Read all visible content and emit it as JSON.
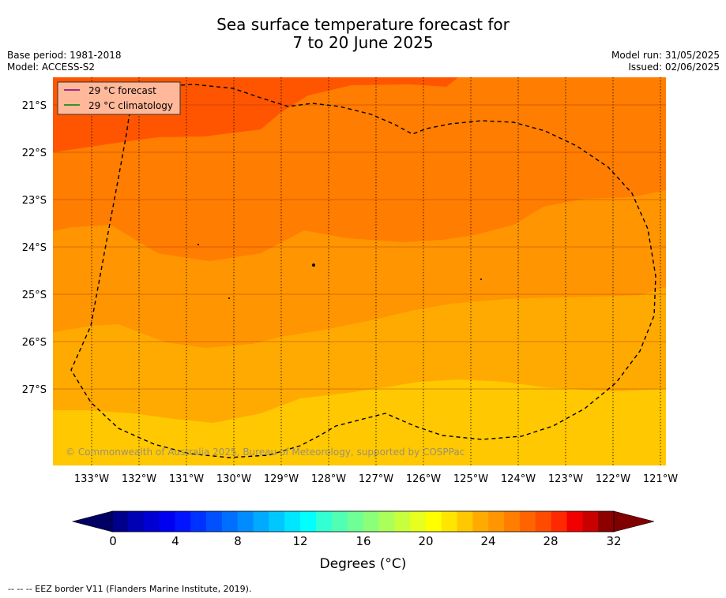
{
  "title_line1": "Sea surface temperature forecast for",
  "title_line2": "7 to 20 June 2025",
  "meta_left": [
    "Base period: 1981-2018",
    "Model: ACCESS-S2"
  ],
  "meta_right": [
    "Model run: 31/05/2025",
    "Issued: 02/06/2025"
  ],
  "map": {
    "lon_range": [
      -133.8,
      -120.8
    ],
    "lat_range": [
      -28.7,
      -20.4
    ],
    "lon_ticks": [
      "133°W",
      "132°W",
      "131°W",
      "130°W",
      "129°W",
      "128°W",
      "127°W",
      "126°W",
      "125°W",
      "124°W",
      "123°W",
      "122°W",
      "121°W"
    ],
    "lat_ticks": [
      "21°S",
      "22°S",
      "23°S",
      "24°S",
      "25°S",
      "26°S",
      "27°S"
    ],
    "temperature_bands_c": [
      {
        "range": "22-23",
        "color": "#FFC800"
      },
      {
        "range": "23-24",
        "color": "#FFAA00"
      },
      {
        "range": "24-25",
        "color": "#FF9500"
      },
      {
        "range": "25-26",
        "color": "#FF7D00"
      },
      {
        "range": "26-27",
        "color": "#FF5500"
      }
    ],
    "legend": [
      "29 °C  forecast",
      "29 °C  climatology"
    ],
    "legend_colors": [
      "#800080",
      "#008000"
    ],
    "copyright": "© Commonwealth of Australia 2025, Bureau of Meteorology, supported by COSPPac"
  },
  "colorbar": {
    "tick_labels": [
      "0",
      "4",
      "8",
      "12",
      "16",
      "20",
      "24",
      "28",
      "32"
    ],
    "title": "Degrees (°C)",
    "colors": [
      "#00008C",
      "#0000B4",
      "#0000D2",
      "#0000F0",
      "#0014FF",
      "#0032FF",
      "#0050FF",
      "#006EFF",
      "#008CFF",
      "#00AAFF",
      "#00C8FF",
      "#00E6FF",
      "#00FFFF",
      "#32FFD2",
      "#50FFB4",
      "#6EFF96",
      "#8CFF78",
      "#AAFF5A",
      "#C8FF3C",
      "#E6FF1E",
      "#FFFF00",
      "#FFE600",
      "#FFC800",
      "#FFAA00",
      "#FF9500",
      "#FF7D00",
      "#FF6400",
      "#FF4B00",
      "#FF2800",
      "#F00000",
      "#C80000",
      "#8C0000"
    ],
    "under_color": "#000064",
    "over_color": "#800000"
  },
  "footer": "--  --  -- EEZ border V11 (Flanders Marine Institute, 2019)."
}
